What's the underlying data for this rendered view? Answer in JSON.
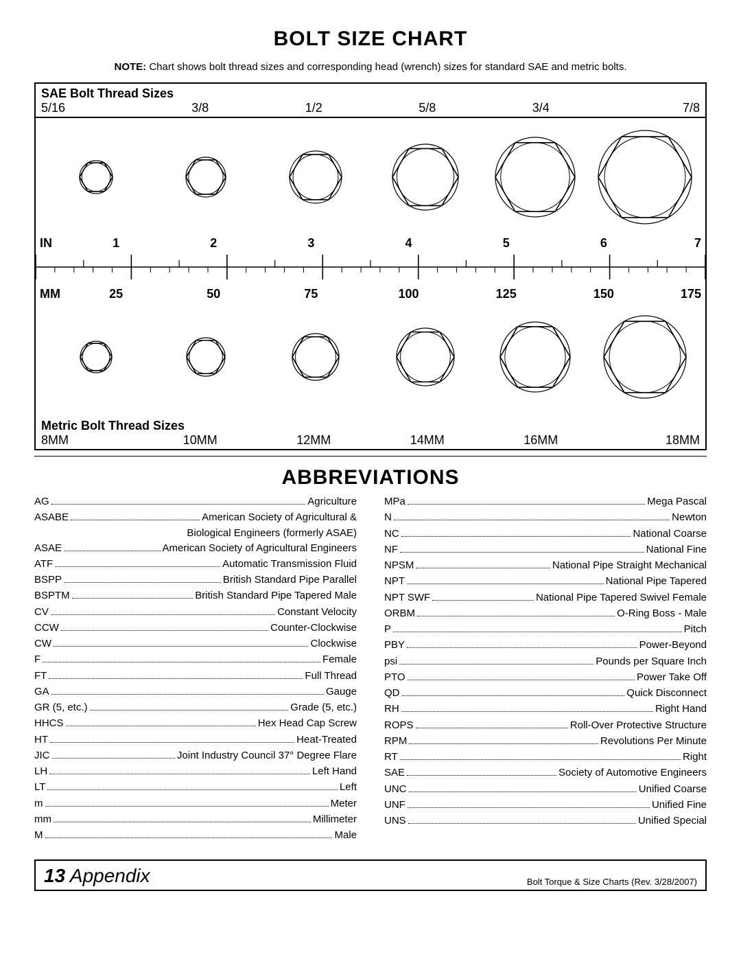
{
  "title1": "Bolt Size Chart",
  "note_bold": "NOTE:",
  "note_text": " Chart shows bolt thread sizes and corresponding head (wrench) sizes for standard SAE and metric bolts.",
  "sae_header": "SAE Bolt Thread Sizes",
  "sae_sizes": [
    "5/16",
    "3/8",
    "1/2",
    "5/8",
    "3/4",
    "7/8"
  ],
  "sae_hex_diams": [
    48,
    58,
    76,
    96,
    116,
    136
  ],
  "ruler_in_unit": "IN",
  "ruler_in_nums": [
    "1",
    "2",
    "3",
    "4",
    "5",
    "6",
    "7"
  ],
  "ruler_mm_unit": "MM",
  "ruler_mm_nums": [
    "25",
    "50",
    "75",
    "100",
    "125",
    "150",
    "175"
  ],
  "metric_hex_diams": [
    46,
    56,
    68,
    84,
    102,
    120
  ],
  "metric_header": "Metric Bolt Thread Sizes",
  "metric_sizes": [
    "8MM",
    "10MM",
    "12MM",
    "14MM",
    "16MM",
    "18MM"
  ],
  "title2": "Abbreviations",
  "abbrev_left": [
    {
      "k": "AG",
      "v": "Agriculture"
    },
    {
      "k": "ASABE",
      "v": "American Society of Agricultural &",
      "cont": "Biological Engineers (formerly ASAE)"
    },
    {
      "k": "ASAE",
      "v": "American Society of Agricultural Engineers"
    },
    {
      "k": "ATF",
      "v": "Automatic Transmission Fluid"
    },
    {
      "k": "BSPP",
      "v": "British Standard Pipe Parallel"
    },
    {
      "k": "BSPTM",
      "v": "British Standard Pipe Tapered Male"
    },
    {
      "k": "CV",
      "v": "Constant Velocity"
    },
    {
      "k": "CCW",
      "v": "Counter-Clockwise"
    },
    {
      "k": "CW",
      "v": "Clockwise"
    },
    {
      "k": "F",
      "v": "Female"
    },
    {
      "k": "FT",
      "v": "Full Thread"
    },
    {
      "k": "GA",
      "v": "Gauge"
    },
    {
      "k": "GR (5, etc.)",
      "v": "Grade (5, etc.)"
    },
    {
      "k": "HHCS",
      "v": "Hex Head Cap Screw"
    },
    {
      "k": "HT",
      "v": "Heat-Treated"
    },
    {
      "k": "JIC",
      "v": "Joint Industry Council 37° Degree Flare"
    },
    {
      "k": "LH",
      "v": "Left Hand"
    },
    {
      "k": "LT",
      "v": "Left"
    },
    {
      "k": "m",
      "v": "Meter"
    },
    {
      "k": "mm",
      "v": "Millimeter"
    },
    {
      "k": "M",
      "v": "Male"
    }
  ],
  "abbrev_right": [
    {
      "k": "MPa",
      "v": "Mega Pascal"
    },
    {
      "k": "N",
      "v": "Newton"
    },
    {
      "k": "NC",
      "v": "National Coarse"
    },
    {
      "k": "NF",
      "v": "National Fine"
    },
    {
      "k": "NPSM",
      "v": "National Pipe Straight Mechanical"
    },
    {
      "k": "NPT",
      "v": "National Pipe Tapered"
    },
    {
      "k": "NPT SWF",
      "v": "National Pipe Tapered Swivel Female"
    },
    {
      "k": "ORBM",
      "v": "O-Ring Boss - Male"
    },
    {
      "k": "P",
      "v": "Pitch"
    },
    {
      "k": "PBY",
      "v": "Power-Beyond"
    },
    {
      "k": "psi",
      "v": "Pounds per Square Inch"
    },
    {
      "k": "PTO",
      "v": "Power Take Off"
    },
    {
      "k": "QD",
      "v": "Quick Disconnect"
    },
    {
      "k": "RH",
      "v": "Right Hand"
    },
    {
      "k": "ROPS",
      "v": "Roll-Over Protective Structure"
    },
    {
      "k": "RPM",
      "v": "Revolutions Per Minute"
    },
    {
      "k": "RT",
      "v": "Right"
    },
    {
      "k": "SAE",
      "v": "Society of Automotive Engineers"
    },
    {
      "k": "UNC",
      "v": "Unified Coarse"
    },
    {
      "k": "UNF",
      "v": "Unified Fine"
    },
    {
      "k": "UNS",
      "v": "Unified Special"
    }
  ],
  "footer_num": "13",
  "footer_title": " Appendix",
  "footer_right": "Bolt Torque & Size Charts (Rev. 3/28/2007)",
  "colors": {
    "stroke": "#000000",
    "bg": "#ffffff"
  }
}
